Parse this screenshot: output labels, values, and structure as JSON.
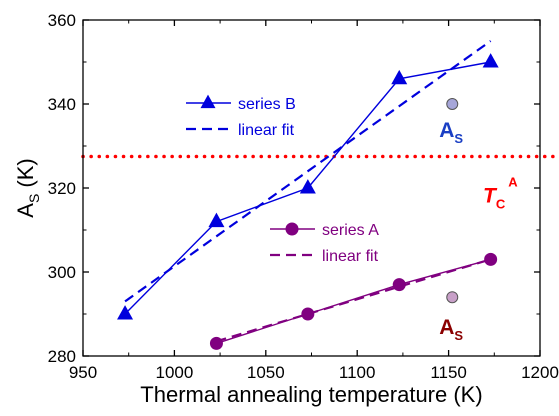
{
  "chart_data": {
    "type": "line",
    "xlabel": "Thermal annealing temperature (K)",
    "ylabel": "A",
    "ylabel_sub": "S",
    "ylabel_unit": " (K)",
    "xlim": [
      950,
      1200
    ],
    "ylim": [
      280,
      360
    ],
    "xticks": [
      950,
      1000,
      1050,
      1100,
      1150,
      1200
    ],
    "yticks": [
      280,
      300,
      320,
      340,
      360
    ],
    "xtick_labels": [
      "950",
      "1000",
      "1050",
      "1100",
      "1150",
      "1200"
    ],
    "ytick_labels": [
      "280",
      "300",
      "320",
      "340",
      "360"
    ],
    "series": [
      {
        "name": "series B",
        "color": "#0000dd",
        "marker": "triangle",
        "x": [
          973,
          1023,
          1073,
          1123,
          1173
        ],
        "y": [
          290,
          312,
          320,
          346,
          350
        ]
      },
      {
        "name": "series A",
        "color": "#800080",
        "marker": "circle",
        "x": [
          1023,
          1073,
          1123,
          1173
        ],
        "y": [
          283,
          290,
          297,
          303
        ]
      }
    ],
    "fits": [
      {
        "name": "linear fit",
        "color": "#0000dd",
        "x": [
          973,
          1173
        ],
        "y": [
          293,
          355
        ]
      },
      {
        "name": "linear fit",
        "color": "#800080",
        "x": [
          1023,
          1173
        ],
        "y": [
          283.5,
          303
        ]
      }
    ],
    "reference_line": {
      "y": 327.5,
      "color": "#ff0000",
      "style": "dotted",
      "label": "T",
      "label_sub": "C",
      "label_sup": "A"
    },
    "annotations": [
      {
        "label": "A",
        "label_sub": "S",
        "color": "#1a3fc4",
        "marker_fill": "#a6a6d9",
        "marker_x": 1152,
        "marker_y": 340
      },
      {
        "label": "A",
        "label_sub": "S",
        "color": "#8b0000",
        "marker_fill": "#c8a0c8",
        "marker_x": 1152,
        "marker_y": 294
      }
    ]
  }
}
